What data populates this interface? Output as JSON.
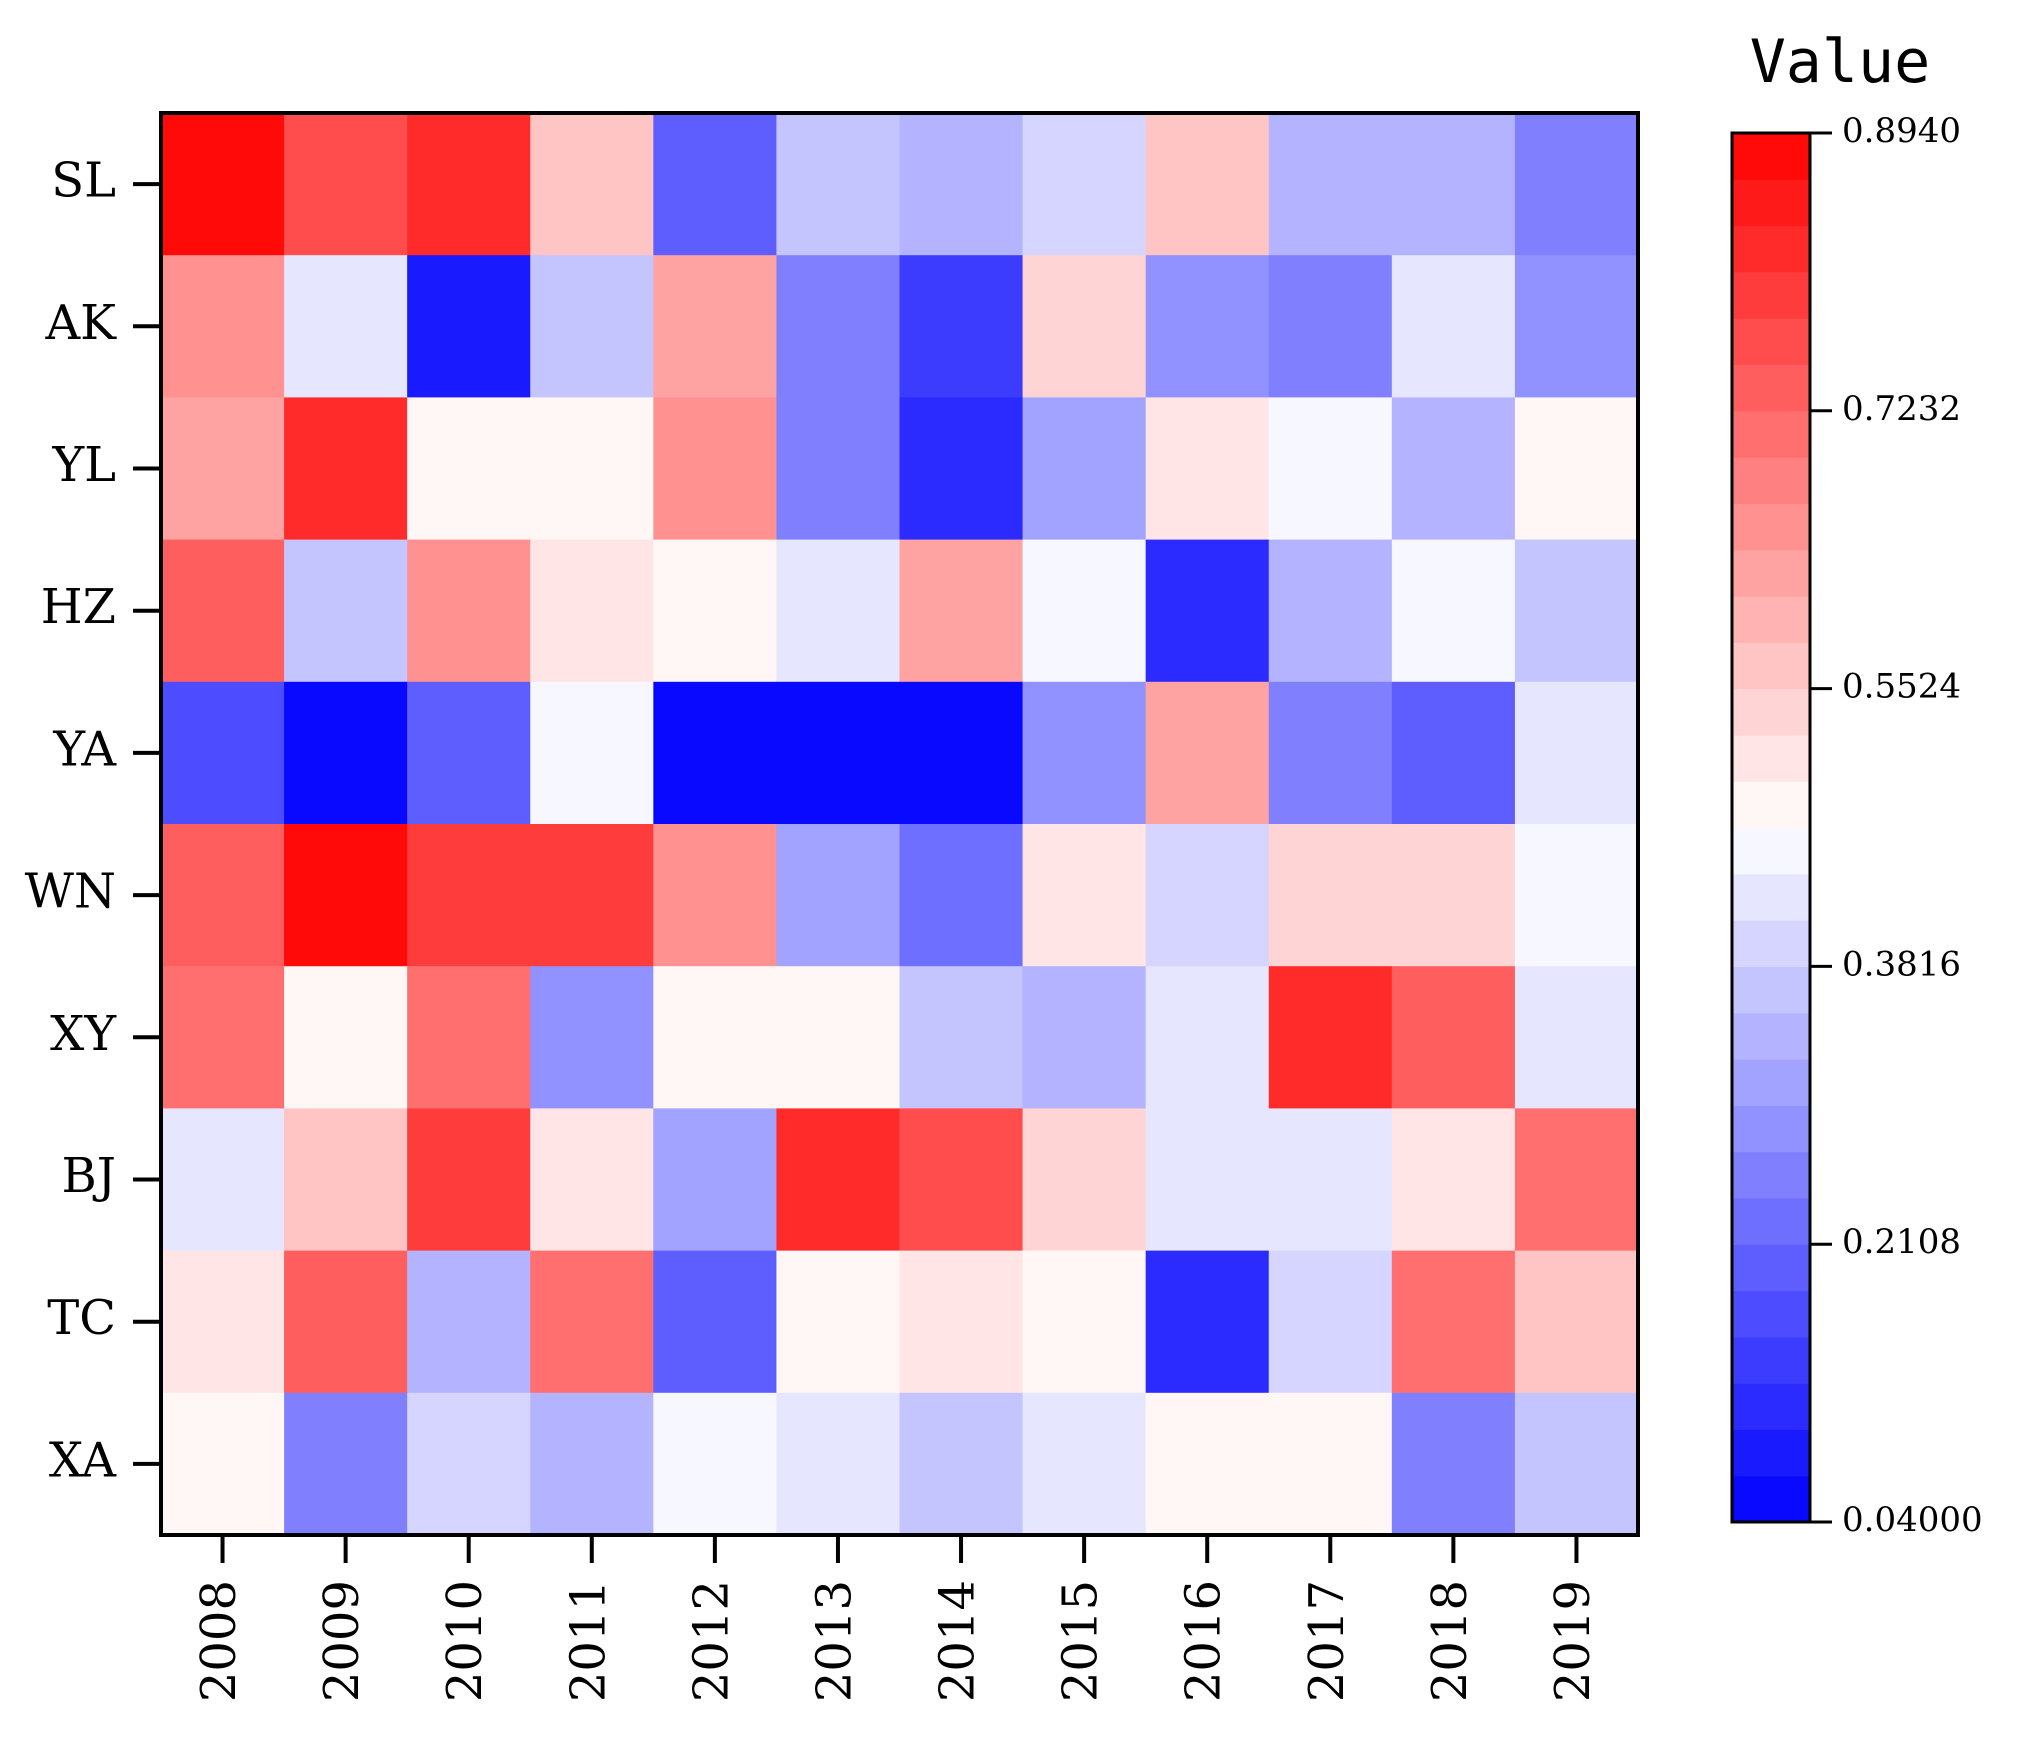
{
  "chart_data": {
    "type": "heatmap",
    "title": "",
    "xlabel": "",
    "ylabel": "",
    "x_categories": [
      "2008",
      "2009",
      "2010",
      "2011",
      "2012",
      "2013",
      "2014",
      "2015",
      "2016",
      "2017",
      "2018",
      "2019"
    ],
    "y_categories": [
      "SL",
      "AK",
      "YL",
      "HZ",
      "YA",
      "WN",
      "XY",
      "BJ",
      "TC",
      "XA"
    ],
    "values": [
      [
        0.89,
        0.77,
        0.83,
        0.58,
        0.2,
        0.36,
        0.33,
        0.39,
        0.58,
        0.33,
        0.33,
        0.25
      ],
      [
        0.66,
        0.42,
        0.08,
        0.38,
        0.62,
        0.26,
        0.14,
        0.55,
        0.28,
        0.24,
        0.42,
        0.28
      ],
      [
        0.62,
        0.83,
        0.475,
        0.475,
        0.66,
        0.26,
        0.12,
        0.3,
        0.52,
        0.445,
        0.33,
        0.475
      ],
      [
        0.74,
        0.36,
        0.66,
        0.52,
        0.475,
        0.42,
        0.62,
        0.445,
        0.12,
        0.33,
        0.445,
        0.38
      ],
      [
        0.16,
        0.04,
        0.2,
        0.445,
        0.04,
        0.04,
        0.04,
        0.28,
        0.62,
        0.26,
        0.2,
        0.42
      ],
      [
        0.74,
        0.89,
        0.8,
        0.8,
        0.66,
        0.3,
        0.22,
        0.52,
        0.39,
        0.55,
        0.55,
        0.445
      ],
      [
        0.7,
        0.475,
        0.7,
        0.28,
        0.475,
        0.475,
        0.38,
        0.33,
        0.42,
        0.83,
        0.74,
        0.42
      ],
      [
        0.42,
        0.58,
        0.8,
        0.52,
        0.3,
        0.83,
        0.78,
        0.55,
        0.42,
        0.42,
        0.52,
        0.7
      ],
      [
        0.52,
        0.74,
        0.33,
        0.7,
        0.2,
        0.475,
        0.52,
        0.475,
        0.12,
        0.39,
        0.7,
        0.58
      ],
      [
        0.475,
        0.26,
        0.39,
        0.33,
        0.445,
        0.42,
        0.36,
        0.42,
        0.475,
        0.475,
        0.24,
        0.36
      ]
    ],
    "colorbar": {
      "title": "Value",
      "min": 0.04,
      "max": 0.894,
      "ticks": [
        0.04,
        0.2108,
        0.3816,
        0.5524,
        0.7232,
        0.894
      ],
      "tick_labels": [
        "0.04000",
        "0.2108",
        "0.3816",
        "0.5524",
        "0.7232",
        "0.8940"
      ],
      "levels": 30
    },
    "colormap": [
      "#0000ff",
      "#ffffff",
      "#ff0000"
    ],
    "grid": false
  }
}
